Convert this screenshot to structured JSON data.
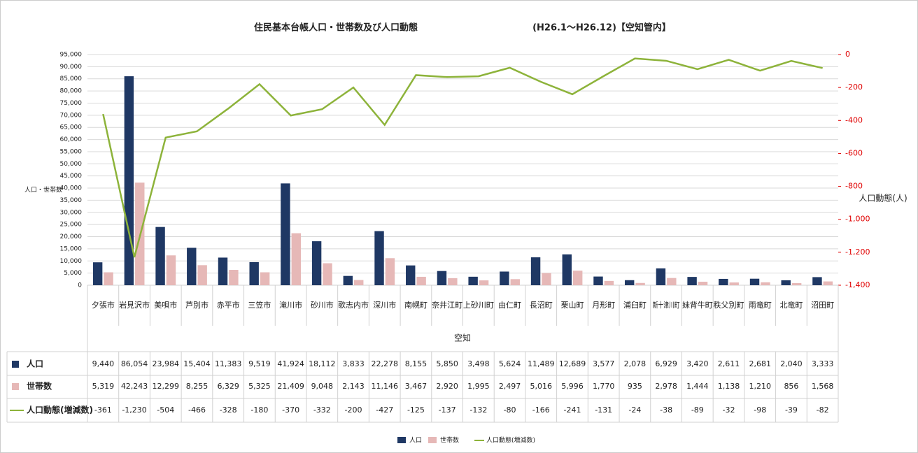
{
  "chart_data": {
    "type": "bar",
    "title": "住民基本台帳人口・世帯数及び人口動態",
    "subtitle": "(H26.1～H26.12)【空知管内】",
    "y_label": "人口・世帯数",
    "y2_label": "人口動態(人)",
    "x_label": "空知",
    "legend": "bottom",
    "grid": true,
    "categories": [
      "夕張市",
      "岩見沢市",
      "美唄市",
      "芦別市",
      "赤平市",
      "三笠市",
      "滝川市",
      "砂川市",
      "歌志内市",
      "深川市",
      "南幌町",
      "奈井江町",
      "上砂川町",
      "由仁町",
      "長沼町",
      "栗山町",
      "月形町",
      "浦臼町",
      "新十津川町",
      "妹背牛町",
      "秩父別町",
      "雨竜町",
      "北竜町",
      "沼田町"
    ],
    "series": [
      {
        "name": "人口",
        "type": "bar",
        "color": "#1f3864",
        "values": [
          9440,
          86054,
          23984,
          15404,
          11383,
          9519,
          41924,
          18112,
          3833,
          22278,
          8155,
          5850,
          3498,
          5624,
          11489,
          12689,
          3577,
          2078,
          6929,
          3420,
          2611,
          2681,
          2040,
          3333
        ],
        "value_labels": [
          "9,440",
          "86,054",
          "23,984",
          "15,404",
          "11,383",
          "9,519",
          "41,924",
          "18,112",
          "3,833",
          "22,278",
          "8,155",
          "5,850",
          "3,498",
          "5,624",
          "11,489",
          "12,689",
          "3,577",
          "2,078",
          "6,929",
          "3,420",
          "2,611",
          "2,681",
          "2,040",
          "3,333"
        ]
      },
      {
        "name": "世帯数",
        "type": "bar",
        "color": "#e6b8b7",
        "values": [
          5319,
          42243,
          12299,
          8255,
          6329,
          5325,
          21409,
          9048,
          2143,
          11146,
          3467,
          2920,
          1995,
          2497,
          5016,
          5996,
          1770,
          935,
          2978,
          1444,
          1138,
          1210,
          856,
          1568
        ],
        "value_labels": [
          "5,319",
          "42,243",
          "12,299",
          "8,255",
          "6,329",
          "5,325",
          "21,409",
          "9,048",
          "2,143",
          "11,146",
          "3,467",
          "2,920",
          "1,995",
          "2,497",
          "5,016",
          "5,996",
          "1,770",
          "935",
          "2,978",
          "1,444",
          "1,138",
          "1,210",
          "856",
          "1,568"
        ]
      },
      {
        "name": "人口動態(増減数)",
        "type": "line",
        "axis": "y2",
        "color": "#8db33a",
        "values": [
          -361,
          -1230,
          -504,
          -466,
          -328,
          -180,
          -370,
          -332,
          -200,
          -427,
          -125,
          -137,
          -132,
          -80,
          -166,
          -241,
          -131,
          -24,
          -38,
          -89,
          -32,
          -98,
          -39,
          -82
        ],
        "value_labels": [
          "-361",
          "-1,230",
          "-504",
          "-466",
          "-328",
          "-180",
          "-370",
          "-332",
          "-200",
          "-427",
          "-125",
          "-137",
          "-132",
          "-80",
          "-166",
          "-241",
          "-131",
          "-24",
          "-38",
          "-89",
          "-32",
          "-98",
          "-39",
          "-82"
        ]
      }
    ],
    "ylim": [
      0,
      95000
    ],
    "yticks": [
      0,
      {
        "value": 5000,
        "label": "5,000"
      },
      {
        "value": 10000,
        "label": "10,000"
      },
      {
        "value": 15000,
        "label": "15,000"
      },
      {
        "value": 20000,
        "label": "20,000"
      },
      {
        "value": 25000,
        "label": "25,000"
      },
      {
        "value": 30000,
        "label": "30,000"
      },
      {
        "value": 35000,
        "label": "35,000"
      },
      {
        "value": 40000,
        "label": "40,000"
      },
      {
        "value": 45000,
        "label": "45,000"
      },
      {
        "value": 50000,
        "label": "50,000"
      },
      {
        "value": 55000,
        "label": "55,000"
      },
      {
        "value": 60000,
        "label": "60,000"
      },
      {
        "value": 65000,
        "label": "65,000"
      },
      {
        "value": 70000,
        "label": "70,000"
      },
      {
        "value": 75000,
        "label": "75,000"
      },
      {
        "value": 80000,
        "label": "80,000"
      },
      {
        "value": 85000,
        "label": "85,000"
      },
      {
        "value": 90000,
        "label": "90,000"
      },
      {
        "value": 95000,
        "label": "95,000"
      }
    ],
    "y2lim": [
      -1400,
      0
    ],
    "y2ticks": [
      0,
      -200,
      -400,
      -600,
      -800,
      {
        "value": -1000,
        "label": "-1,000"
      },
      {
        "value": -1200,
        "label": "-1,200"
      },
      {
        "value": -1400,
        "label": "-1,400"
      }
    ]
  }
}
